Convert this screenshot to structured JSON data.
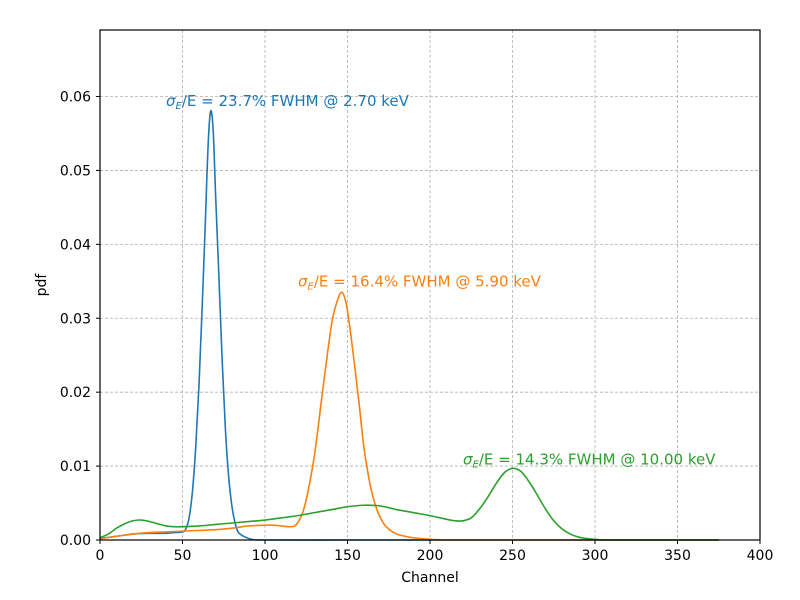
{
  "chart_data": {
    "type": "line",
    "xlabel": "Channel",
    "ylabel": "pdf",
    "xlim": [
      0,
      400
    ],
    "ylim": [
      0,
      0.069
    ],
    "xticks": [
      0,
      50,
      100,
      150,
      200,
      250,
      300,
      350,
      400
    ],
    "yticks": [
      0.0,
      0.01,
      0.02,
      0.03,
      0.04,
      0.05,
      0.06
    ],
    "xtick_labels": [
      "0",
      "50",
      "100",
      "150",
      "200",
      "250",
      "300",
      "350",
      "400"
    ],
    "ytick_labels": [
      "0.00",
      "0.01",
      "0.02",
      "0.03",
      "0.04",
      "0.05",
      "0.06"
    ],
    "grid": true,
    "legend": "none",
    "series": [
      {
        "color": "#1f77b4",
        "annotation": {
          "sigma": "σ",
          "sub": "E",
          "rest": "/E = 23.7% FWHM @ 2.70 keV",
          "x": 40,
          "y": 0.0587
        },
        "points": [
          [
            0,
            0.0002
          ],
          [
            10,
            0.0005
          ],
          [
            20,
            0.0008
          ],
          [
            30,
            0.0009
          ],
          [
            40,
            0.0009
          ],
          [
            45,
            0.001
          ],
          [
            50,
            0.0011
          ],
          [
            52,
            0.0015
          ],
          [
            54,
            0.003
          ],
          [
            56,
            0.0065
          ],
          [
            58,
            0.0125
          ],
          [
            60,
            0.021
          ],
          [
            62,
            0.032
          ],
          [
            64,
            0.044
          ],
          [
            65,
            0.0505
          ],
          [
            66,
            0.0555
          ],
          [
            67,
            0.058
          ],
          [
            68,
            0.0572
          ],
          [
            69,
            0.0535
          ],
          [
            70,
            0.047
          ],
          [
            72,
            0.036
          ],
          [
            74,
            0.0245
          ],
          [
            76,
            0.015
          ],
          [
            78,
            0.0085
          ],
          [
            80,
            0.0045
          ],
          [
            82,
            0.0022
          ],
          [
            84,
            0.001
          ],
          [
            88,
            0.0004
          ],
          [
            92,
            0.0001
          ],
          [
            100,
            0.0
          ],
          [
            150,
            0.0
          ],
          [
            200,
            0.0
          ],
          [
            250,
            0.0
          ],
          [
            300,
            0.0
          ],
          [
            350,
            0.0
          ],
          [
            375,
            0.0
          ]
        ]
      },
      {
        "color": "#ff7f0e",
        "annotation": {
          "sigma": "σ",
          "sub": "E",
          "rest": "/E = 16.4% FWHM @ 5.90 keV",
          "x": 120,
          "y": 0.0343
        },
        "points": [
          [
            0,
            0.0002
          ],
          [
            10,
            0.0005
          ],
          [
            20,
            0.0008
          ],
          [
            30,
            0.001
          ],
          [
            40,
            0.0011
          ],
          [
            50,
            0.0012
          ],
          [
            60,
            0.0013
          ],
          [
            70,
            0.0014
          ],
          [
            80,
            0.0016
          ],
          [
            90,
            0.0019
          ],
          [
            100,
            0.002
          ],
          [
            105,
            0.002
          ],
          [
            110,
            0.0019
          ],
          [
            115,
            0.0018
          ],
          [
            118,
            0.0019
          ],
          [
            120,
            0.0024
          ],
          [
            123,
            0.0038
          ],
          [
            126,
            0.0065
          ],
          [
            130,
            0.0115
          ],
          [
            134,
            0.0185
          ],
          [
            138,
            0.0255
          ],
          [
            141,
            0.03
          ],
          [
            144,
            0.0325
          ],
          [
            146,
            0.0335
          ],
          [
            148,
            0.033
          ],
          [
            150,
            0.031
          ],
          [
            153,
            0.026
          ],
          [
            157,
            0.0185
          ],
          [
            160,
            0.0125
          ],
          [
            164,
            0.0072
          ],
          [
            168,
            0.004
          ],
          [
            172,
            0.0022
          ],
          [
            176,
            0.0013
          ],
          [
            180,
            0.0008
          ],
          [
            185,
            0.0005
          ],
          [
            190,
            0.0003
          ],
          [
            200,
            0.0001
          ],
          [
            210,
            0.0
          ],
          [
            250,
            0.0
          ],
          [
            300,
            0.0
          ],
          [
            350,
            0.0
          ],
          [
            375,
            0.0
          ]
        ]
      },
      {
        "color": "#2ca02c",
        "annotation": {
          "sigma": "σ",
          "sub": "E",
          "rest": "/E = 14.3% FWHM @ 10.00 keV",
          "x": 220,
          "y": 0.0102
        },
        "points": [
          [
            0,
            0.0003
          ],
          [
            5,
            0.0008
          ],
          [
            10,
            0.0016
          ],
          [
            15,
            0.0022
          ],
          [
            20,
            0.0026
          ],
          [
            25,
            0.0027
          ],
          [
            30,
            0.0025
          ],
          [
            35,
            0.0022
          ],
          [
            40,
            0.0019
          ],
          [
            45,
            0.0018
          ],
          [
            50,
            0.0018
          ],
          [
            60,
            0.0019
          ],
          [
            70,
            0.0021
          ],
          [
            80,
            0.0023
          ],
          [
            90,
            0.0025
          ],
          [
            100,
            0.0027
          ],
          [
            110,
            0.003
          ],
          [
            120,
            0.0033
          ],
          [
            130,
            0.0037
          ],
          [
            140,
            0.0041
          ],
          [
            150,
            0.0045
          ],
          [
            160,
            0.0047
          ],
          [
            170,
            0.0046
          ],
          [
            180,
            0.0041
          ],
          [
            190,
            0.0037
          ],
          [
            200,
            0.0033
          ],
          [
            210,
            0.0028
          ],
          [
            215,
            0.0026
          ],
          [
            220,
            0.0026
          ],
          [
            225,
            0.003
          ],
          [
            230,
            0.0042
          ],
          [
            235,
            0.0058
          ],
          [
            240,
            0.0076
          ],
          [
            245,
            0.0091
          ],
          [
            250,
            0.0097
          ],
          [
            255,
            0.0093
          ],
          [
            260,
            0.0079
          ],
          [
            265,
            0.0061
          ],
          [
            270,
            0.0042
          ],
          [
            275,
            0.0026
          ],
          [
            280,
            0.0015
          ],
          [
            285,
            0.0008
          ],
          [
            290,
            0.0004
          ],
          [
            295,
            0.0002
          ],
          [
            300,
            0.0001
          ],
          [
            310,
            0.0
          ],
          [
            350,
            0.0
          ],
          [
            375,
            0.0
          ]
        ]
      }
    ]
  }
}
